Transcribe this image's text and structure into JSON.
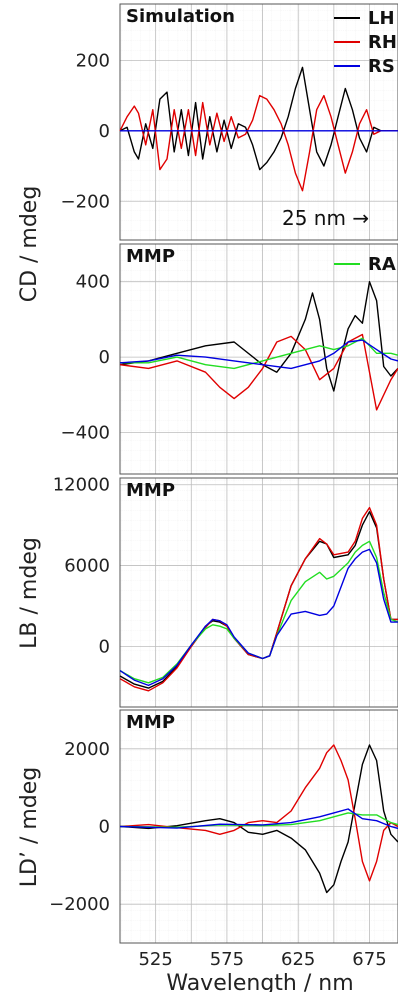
{
  "chart_data": [
    {
      "type": "line",
      "title": "Simulation",
      "ylabel": "CD / mdeg",
      "xlim": [
        500,
        695
      ],
      "ylim": [
        -310,
        360
      ],
      "yticks": [
        -200,
        0,
        200
      ],
      "annotation": "25 nm →",
      "series": [
        {
          "name": "LH",
          "color": "#000000",
          "x": [
            500,
            505,
            510,
            513,
            518,
            523,
            528,
            533,
            538,
            543,
            548,
            553,
            558,
            563,
            568,
            573,
            578,
            583,
            588,
            593,
            598,
            603,
            608,
            613,
            618,
            623,
            628,
            633,
            638,
            643,
            648,
            653,
            658,
            663,
            668,
            673,
            678,
            683,
            688,
            695
          ],
          "y": [
            0,
            10,
            -60,
            -80,
            20,
            -50,
            90,
            110,
            -60,
            60,
            -70,
            80,
            -80,
            40,
            -60,
            30,
            -50,
            20,
            10,
            -40,
            -110,
            -90,
            -60,
            -20,
            40,
            120,
            180,
            60,
            -60,
            -100,
            -40,
            40,
            120,
            60,
            -20,
            -60,
            10,
            0,
            0,
            0
          ]
        },
        {
          "name": "RH",
          "color": "#e00000",
          "x": [
            500,
            505,
            510,
            513,
            518,
            523,
            528,
            533,
            538,
            543,
            548,
            553,
            558,
            563,
            568,
            573,
            578,
            583,
            588,
            593,
            598,
            603,
            608,
            613,
            618,
            623,
            628,
            633,
            638,
            643,
            648,
            653,
            658,
            663,
            668,
            673,
            678,
            683,
            688,
            695
          ],
          "y": [
            0,
            40,
            70,
            50,
            -40,
            60,
            -110,
            -80,
            60,
            -50,
            60,
            -70,
            80,
            -40,
            50,
            -30,
            40,
            -20,
            -10,
            30,
            100,
            90,
            60,
            20,
            -40,
            -120,
            -170,
            -60,
            60,
            100,
            40,
            -40,
            -120,
            -60,
            20,
            60,
            -10,
            0,
            0,
            0
          ]
        },
        {
          "name": "RS",
          "color": "#0000e0",
          "x": [
            500,
            695
          ],
          "y": [
            0,
            0
          ]
        }
      ]
    },
    {
      "type": "line",
      "title": "MMP",
      "ylabel": "CD / mdeg",
      "xlim": [
        500,
        695
      ],
      "ylim": [
        -620,
        600
      ],
      "yticks": [
        -400,
        0,
        400
      ],
      "series": [
        {
          "name": "LH",
          "color": "#000000",
          "x": [
            500,
            520,
            540,
            560,
            580,
            600,
            610,
            620,
            630,
            635,
            640,
            645,
            650,
            655,
            660,
            665,
            670,
            675,
            680,
            685,
            690,
            695
          ],
          "y": [
            -40,
            -20,
            20,
            60,
            80,
            -40,
            -80,
            20,
            200,
            340,
            200,
            -60,
            -180,
            0,
            150,
            220,
            180,
            400,
            300,
            -50,
            -100,
            -60
          ]
        },
        {
          "name": "RH",
          "color": "#e00000",
          "x": [
            500,
            520,
            540,
            560,
            570,
            580,
            590,
            600,
            610,
            620,
            630,
            640,
            650,
            660,
            670,
            680,
            690,
            695
          ],
          "y": [
            -40,
            -60,
            -20,
            -80,
            -160,
            -220,
            -160,
            -60,
            80,
            110,
            40,
            -120,
            -60,
            80,
            120,
            -280,
            -120,
            -60
          ]
        },
        {
          "name": "RA",
          "color": "#22dd22",
          "x": [
            500,
            520,
            540,
            560,
            580,
            600,
            620,
            640,
            650,
            660,
            670,
            680,
            690,
            695
          ],
          "y": [
            -30,
            -30,
            0,
            -40,
            -60,
            -20,
            20,
            60,
            40,
            60,
            100,
            20,
            20,
            10
          ]
        },
        {
          "name": "RS",
          "color": "#0000e0",
          "x": [
            500,
            520,
            540,
            560,
            580,
            600,
            620,
            640,
            650,
            660,
            670,
            680,
            690,
            695
          ],
          "y": [
            -30,
            -20,
            10,
            0,
            -20,
            -40,
            -60,
            -20,
            20,
            80,
            90,
            40,
            -10,
            -20
          ]
        }
      ]
    },
    {
      "type": "line",
      "title": "MMP",
      "ylabel": "LB / mdeg",
      "xlim": [
        500,
        695
      ],
      "ylim": [
        -4500,
        12500
      ],
      "yticks": [
        0,
        6000,
        12000
      ],
      "series": [
        {
          "name": "LH",
          "color": "#000000",
          "x": [
            500,
            510,
            520,
            530,
            540,
            550,
            560,
            565,
            570,
            575,
            580,
            590,
            600,
            605,
            610,
            620,
            630,
            640,
            645,
            650,
            660,
            665,
            670,
            675,
            680,
            685,
            690,
            695
          ],
          "y": [
            -2200,
            -2800,
            -3100,
            -2600,
            -1500,
            0,
            1500,
            1900,
            1800,
            1500,
            600,
            -600,
            -900,
            -700,
            1000,
            4500,
            6500,
            7800,
            7600,
            6600,
            6800,
            7500,
            9000,
            10000,
            8800,
            5000,
            2000,
            2000
          ]
        },
        {
          "name": "RH",
          "color": "#e00000",
          "x": [
            500,
            510,
            520,
            530,
            540,
            550,
            560,
            565,
            570,
            575,
            580,
            590,
            600,
            605,
            610,
            620,
            630,
            640,
            645,
            650,
            660,
            665,
            670,
            675,
            680,
            685,
            690,
            695
          ],
          "y": [
            -2400,
            -3000,
            -3300,
            -2700,
            -1600,
            0,
            1400,
            2000,
            1900,
            1500,
            600,
            -600,
            -900,
            -700,
            1000,
            4500,
            6500,
            8000,
            7600,
            6800,
            7000,
            7800,
            9500,
            10300,
            9000,
            5000,
            2000,
            2000
          ]
        },
        {
          "name": "RA",
          "color": "#22dd22",
          "x": [
            500,
            510,
            520,
            530,
            540,
            550,
            560,
            565,
            570,
            575,
            580,
            590,
            600,
            605,
            610,
            620,
            630,
            640,
            645,
            650,
            660,
            665,
            670,
            675,
            680,
            685,
            690,
            695
          ],
          "y": [
            -1800,
            -2400,
            -2700,
            -2300,
            -1300,
            100,
            1300,
            1600,
            1500,
            1300,
            600,
            -500,
            -900,
            -700,
            800,
            3400,
            4800,
            5500,
            5000,
            5200,
            6200,
            7000,
            7500,
            7800,
            6600,
            4000,
            2000,
            1800
          ]
        },
        {
          "name": "RS",
          "color": "#0000e0",
          "x": [
            500,
            510,
            520,
            530,
            540,
            550,
            560,
            565,
            570,
            575,
            580,
            590,
            600,
            605,
            610,
            620,
            630,
            640,
            645,
            650,
            660,
            665,
            670,
            675,
            680,
            685,
            690,
            695
          ],
          "y": [
            -1800,
            -2500,
            -2900,
            -2400,
            -1400,
            100,
            1500,
            2000,
            1900,
            1600,
            700,
            -500,
            -900,
            -700,
            800,
            2400,
            2600,
            2300,
            2400,
            3000,
            5800,
            6500,
            7000,
            7200,
            6200,
            3500,
            1800,
            1800
          ]
        }
      ]
    },
    {
      "type": "line",
      "title": "MMP",
      "ylabel": "LD’ / mdeg",
      "xlim": [
        500,
        695
      ],
      "ylim": [
        -3000,
        3000
      ],
      "yticks": [
        -2000,
        0,
        2000
      ],
      "xticks": [
        525,
        575,
        625,
        675
      ],
      "xlabel": "Wavelength / nm",
      "series": [
        {
          "name": "LH",
          "color": "#000000",
          "x": [
            500,
            520,
            540,
            560,
            570,
            580,
            590,
            600,
            610,
            620,
            630,
            640,
            645,
            650,
            655,
            660,
            665,
            670,
            675,
            680,
            685,
            690,
            695
          ],
          "y": [
            0,
            -50,
            20,
            150,
            200,
            100,
            -150,
            -200,
            -100,
            -300,
            -600,
            -1200,
            -1700,
            -1500,
            -900,
            -400,
            600,
            1600,
            2100,
            1700,
            400,
            -200,
            -400
          ]
        },
        {
          "name": "RH",
          "color": "#e00000",
          "x": [
            500,
            520,
            540,
            560,
            570,
            580,
            590,
            600,
            610,
            620,
            630,
            640,
            645,
            650,
            655,
            660,
            665,
            670,
            675,
            680,
            685,
            690,
            695
          ],
          "y": [
            0,
            50,
            -30,
            -100,
            -200,
            -100,
            100,
            150,
            100,
            400,
            1000,
            1500,
            1900,
            2100,
            1700,
            1200,
            200,
            -900,
            -1400,
            -900,
            -100,
            100,
            0
          ]
        },
        {
          "name": "RA",
          "color": "#22dd22",
          "x": [
            500,
            540,
            570,
            600,
            620,
            640,
            650,
            660,
            670,
            680,
            690,
            695
          ],
          "y": [
            0,
            -20,
            40,
            20,
            50,
            150,
            250,
            350,
            300,
            300,
            100,
            50
          ]
        },
        {
          "name": "RS",
          "color": "#0000e0",
          "x": [
            500,
            540,
            570,
            600,
            620,
            640,
            650,
            660,
            670,
            680,
            690,
            695
          ],
          "y": [
            0,
            -40,
            60,
            40,
            100,
            250,
            350,
            450,
            200,
            150,
            0,
            -50
          ]
        }
      ]
    }
  ]
}
